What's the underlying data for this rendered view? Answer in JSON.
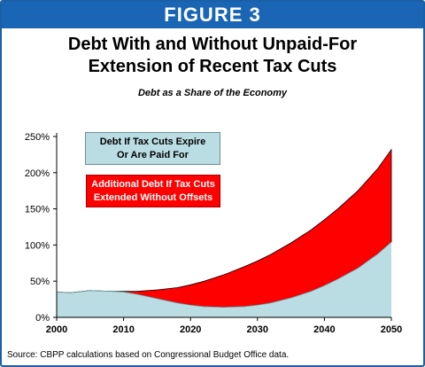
{
  "figure_label": "FIGURE 3",
  "source_note": "Source: CBPP calculations based on Congressional Budget Office data.",
  "chart_data": {
    "type": "area",
    "title": "Debt With and Without Unpaid-For Extension of Recent Tax Cuts",
    "title_lines": [
      "Debt With and Without Unpaid-For",
      "Extension of Recent Tax Cuts"
    ],
    "subtitle": "Debt as a Share of the Economy",
    "xlabel": "",
    "ylabel": "",
    "xlim": [
      2000,
      2050
    ],
    "ylim": [
      0,
      250
    ],
    "x_ticks": [
      2000,
      2010,
      2020,
      2030,
      2040,
      2050
    ],
    "y_ticks": [
      0,
      50,
      100,
      150,
      200,
      250
    ],
    "y_tick_labels": [
      "0%",
      "50%",
      "100%",
      "150%",
      "200%",
      "250%"
    ],
    "grid": false,
    "legend_placement": "upper-left",
    "x": [
      2000,
      2002,
      2005,
      2008,
      2010,
      2012,
      2015,
      2018,
      2020,
      2022,
      2025,
      2028,
      2030,
      2032,
      2035,
      2038,
      2040,
      2042,
      2045,
      2048,
      2050
    ],
    "series": [
      {
        "name": "Debt If Tax Cuts Expire Or Are Paid For",
        "color": "#b9dde3",
        "values": [
          35,
          34,
          37,
          36,
          35,
          32,
          26,
          20,
          17,
          15,
          14,
          15,
          17,
          20,
          27,
          36,
          44,
          53,
          68,
          88,
          104
        ]
      },
      {
        "name": "Additional Debt If Tax Cuts Extended Without Offsets",
        "color": "#ff0000",
        "stacked_total": [
          35,
          34,
          37,
          36,
          36,
          36,
          38,
          41,
          45,
          50,
          59,
          70,
          78,
          87,
          103,
          121,
          135,
          150,
          175,
          206,
          232
        ]
      }
    ],
    "legend": [
      {
        "lines": [
          "Debt If Tax Cuts Expire",
          "Or Are Paid For"
        ]
      },
      {
        "lines": [
          "Additional Debt If Tax Cuts",
          "Extended Without Offsets"
        ]
      }
    ]
  }
}
